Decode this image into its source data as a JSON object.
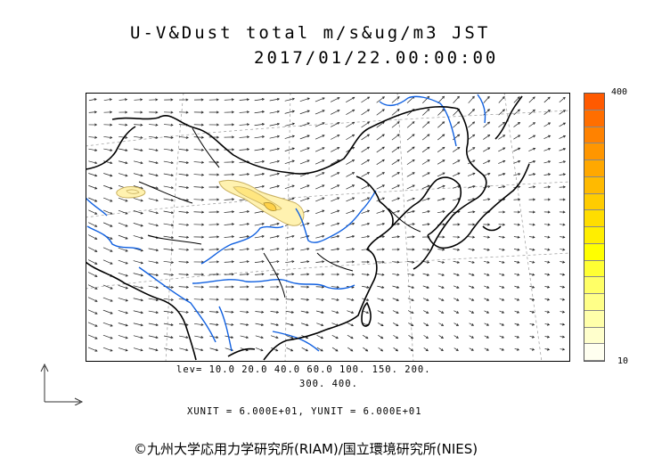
{
  "title": {
    "line1": "U-V&Dust total m/s&ug/m3 JST",
    "line2": "2017/01/22.00:00:00"
  },
  "colorbar": {
    "max_label": "400",
    "min_label": "10",
    "colors": [
      "#ff5a00",
      "#ff6e00",
      "#ff8200",
      "#ff9600",
      "#ffa800",
      "#ffba00",
      "#ffcc00",
      "#ffdd00",
      "#ffee00",
      "#ffff00",
      "#ffff33",
      "#ffff66",
      "#ffff88",
      "#ffffaa",
      "#ffffcc",
      "#fffff0"
    ]
  },
  "levels": {
    "line1": "lev= 10.0 20.0 40.0 60.0 100. 150. 200.",
    "line2": "300. 400."
  },
  "units_text": "XUNIT = 6.000E+01, YUNIT = 6.000E+01",
  "credit": "©九州大学応用力学研究所(RIAM)/国立環境研究所(NIES)",
  "map": {
    "coastline_color": "#000000",
    "river_color": "#1060e0",
    "dust_fill_color": "#fff2b0",
    "dust_outline_color": "#c9b060"
  }
}
